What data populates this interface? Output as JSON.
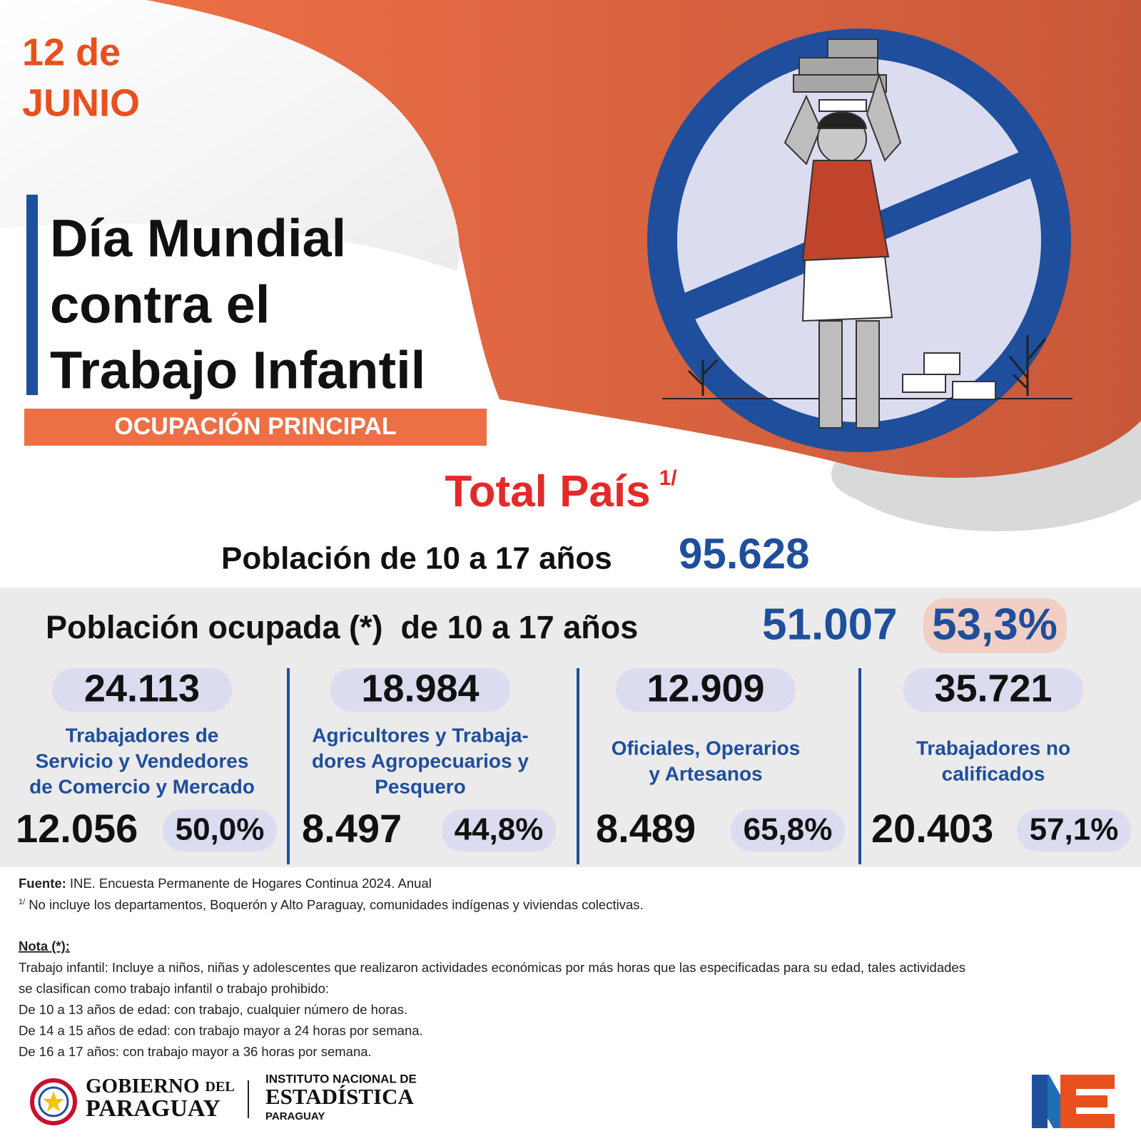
{
  "header": {
    "date": [
      "12 de",
      "JUNIO"
    ],
    "title": [
      "Día Mundial",
      "contra el",
      "Trabajo Infantil"
    ],
    "subtitle": "OCUPACIÓN PRINCIPAL"
  },
  "summary": {
    "title": "Total País",
    "title_note": "1/",
    "population_label": "Población de 10 a 17 años",
    "population_value": "95.628",
    "employed_label": "Población ocupada (*)  de 10 a 17 años",
    "employed_value": "51.007",
    "employed_percent": "53,3%"
  },
  "occupations": [
    {
      "total": "24.113",
      "label": [
        "Trabajadores de",
        "Servicio y Vendedores",
        "de Comercio y Mercado"
      ],
      "count": "12.056",
      "percent": "50,0%"
    },
    {
      "total": "18.984",
      "label": [
        "Agricultores y Trabaja-",
        "dores Agropecuarios y",
        "Pesquero"
      ],
      "count": "8.497",
      "percent": "44,8%"
    },
    {
      "total": "12.909",
      "label": [
        "Oficiales, Operarios",
        "y Artesanos"
      ],
      "count": "8.489",
      "percent": "65,8%"
    },
    {
      "total": "35.721",
      "label": [
        "Trabajadores no",
        "calificados"
      ],
      "count": "20.403",
      "percent": "57,1%"
    }
  ],
  "footer": {
    "source_label": "Fuente:",
    "source": "INE. Encuesta Permanente de Hogares Continua 2024. Anual",
    "note_mark": "1/",
    "note": "No incluye los departamentos, Boquerón y Alto Paraguay, comunidades indígenas y viviendas colectivas.",
    "nota_title": "Nota (*):",
    "nota_lines": [
      "Trabajo infantil: Incluye a niños, niñas y adolescentes que realizaron actividades económicas por más horas que las especificadas para su edad, tales actividades",
      "se clasifican como trabajo infantil o trabajo prohibido:",
      "De 10 a 13 años de edad: con trabajo, cualquier número de horas.",
      "De 14 a 15 años de edad: con trabajo mayor a 24 horas por semana.",
      "De 16 a 17 años: con trabajo mayor a 36 horas por semana."
    ]
  },
  "logos": {
    "government": [
      "GOBIERNO",
      "DEL",
      "PARAGUAY"
    ],
    "institute": [
      "INSTITUTO NACIONAL DE",
      "ESTADÍSTICA",
      "PARAGUAY"
    ]
  }
}
